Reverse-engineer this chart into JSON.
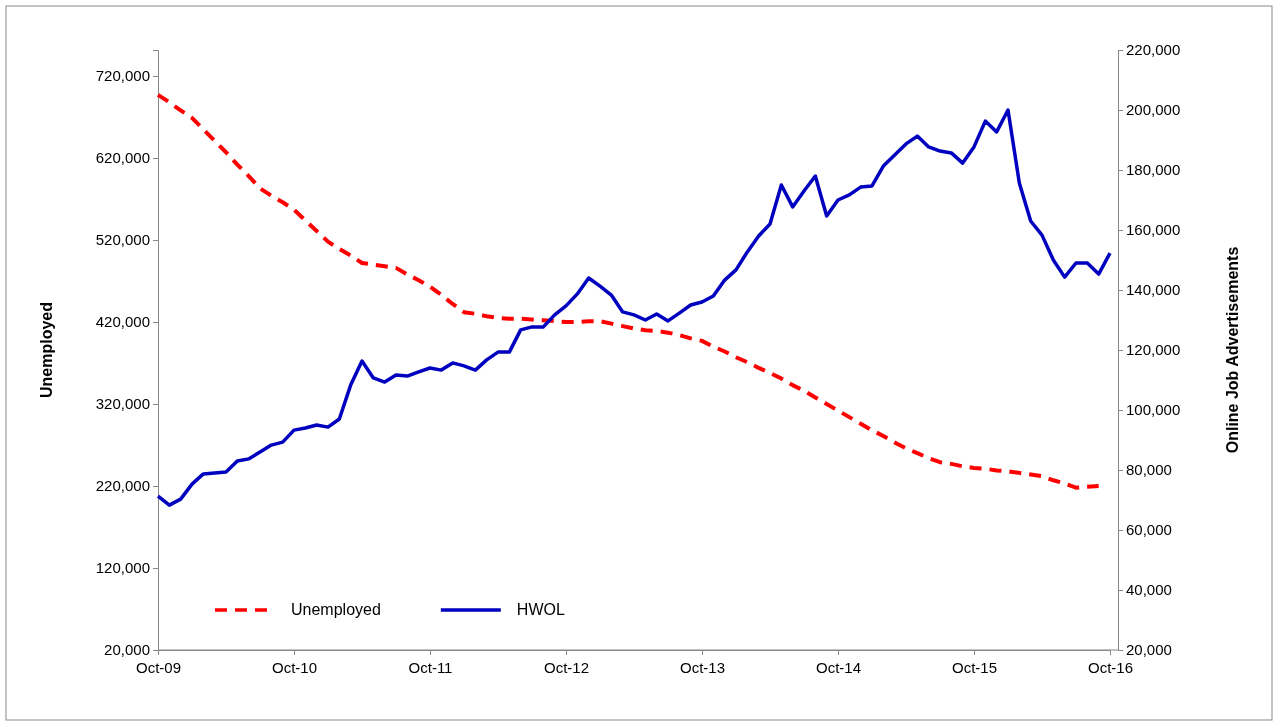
{
  "chart_data": {
    "type": "line",
    "ylabel": "Unemployed",
    "y2label": "Online Job Advertisements",
    "categories": [
      "Oct-09",
      null,
      null,
      null,
      null,
      null,
      null,
      null,
      null,
      null,
      null,
      null,
      "Oct-10",
      null,
      null,
      null,
      null,
      null,
      null,
      null,
      null,
      null,
      null,
      null,
      "Oct-11",
      null,
      null,
      null,
      null,
      null,
      null,
      null,
      null,
      null,
      null,
      null,
      "Oct-12",
      null,
      null,
      null,
      null,
      null,
      null,
      null,
      null,
      null,
      null,
      null,
      "Oct-13",
      null,
      null,
      null,
      null,
      null,
      null,
      null,
      null,
      null,
      null,
      null,
      "Oct-14",
      null,
      null,
      null,
      null,
      null,
      null,
      null,
      null,
      null,
      null,
      null,
      "Oct-15",
      null,
      null,
      null,
      null,
      null,
      null,
      null,
      null,
      null,
      null,
      null,
      "Oct-16"
    ],
    "ylim": [
      20000,
      751700
    ],
    "yticks": [
      {
        "value": 20000,
        "label": "20,000"
      },
      {
        "value": 120000,
        "label": "120,000"
      },
      {
        "value": 220000,
        "label": "220,000"
      },
      {
        "value": 320000,
        "label": "320,000"
      },
      {
        "value": 420000,
        "label": "420,000"
      },
      {
        "value": 520000,
        "label": "520,000"
      },
      {
        "value": 620000,
        "label": "620,000"
      },
      {
        "value": 720000,
        "label": "720,000"
      }
    ],
    "y2lim": [
      20000,
      220000
    ],
    "y2ticks": [
      {
        "value": 20000,
        "label": "20,000"
      },
      {
        "value": 40000,
        "label": "40,000"
      },
      {
        "value": 60000,
        "label": "60,000"
      },
      {
        "value": 80000,
        "label": "80,000"
      },
      {
        "value": 100000,
        "label": "100,000"
      },
      {
        "value": 120000,
        "label": "120,000"
      },
      {
        "value": 140000,
        "label": "140,000"
      },
      {
        "value": 160000,
        "label": "160,000"
      },
      {
        "value": 180000,
        "label": "180,000"
      },
      {
        "value": 200000,
        "label": "200,000"
      },
      {
        "value": 220000,
        "label": "220,000"
      }
    ],
    "legend": "bottom left",
    "series": [
      {
        "name": "Unemployed",
        "color": "#ff0000",
        "line_style": "dashed",
        "values": [
          697000,
          688000,
          678000,
          669000,
          655000,
          641000,
          627000,
          612000,
          598000,
          583000,
          574000,
          566000,
          557000,
          544000,
          531000,
          518000,
          509000,
          501000,
          492000,
          490000,
          488000,
          486000,
          478000,
          471000,
          463000,
          453000,
          442000,
          432000,
          430000,
          427000,
          425000,
          424000,
          424000,
          423000,
          422000,
          421000,
          420000,
          420000,
          421000,
          421000,
          418000,
          415000,
          412000,
          410000,
          409000,
          407000,
          404000,
          400000,
          397000,
          390000,
          384000,
          377000,
          371000,
          364000,
          358000,
          351000,
          343000,
          336000,
          328000,
          320000,
          312000,
          304000,
          296000,
          288000,
          281000,
          273000,
          266000,
          260000,
          254000,
          249000,
          247000,
          244000,
          242000,
          241000,
          239000,
          238000,
          236000,
          234000,
          232000,
          227000,
          223000,
          218000,
          219000,
          220000,
          null
        ]
      },
      {
        "name": "HWOL",
        "color": "#0000bf",
        "line_style": "solid",
        "axis": "y2",
        "values": [
          71300,
          68300,
          70300,
          75300,
          78700,
          79000,
          79300,
          83000,
          83700,
          86000,
          88300,
          89300,
          93300,
          94000,
          95000,
          94300,
          97000,
          108300,
          116300,
          110700,
          109300,
          111700,
          111300,
          112700,
          114000,
          113300,
          115700,
          114700,
          113300,
          116700,
          119300,
          119300,
          126700,
          127700,
          127700,
          131700,
          134700,
          138700,
          144000,
          141300,
          138300,
          132700,
          131700,
          130000,
          132000,
          129700,
          132300,
          135000,
          136000,
          138000,
          143300,
          146700,
          152700,
          158000,
          162000,
          175000,
          167700,
          173000,
          178000,
          164700,
          170000,
          171700,
          174300,
          174700,
          181300,
          185000,
          188700,
          191300,
          187700,
          186300,
          185700,
          182300,
          187700,
          196300,
          192700,
          200000,
          175700,
          163000,
          158300,
          150000,
          144300,
          149000,
          149000,
          145300,
          152300
        ]
      }
    ]
  }
}
